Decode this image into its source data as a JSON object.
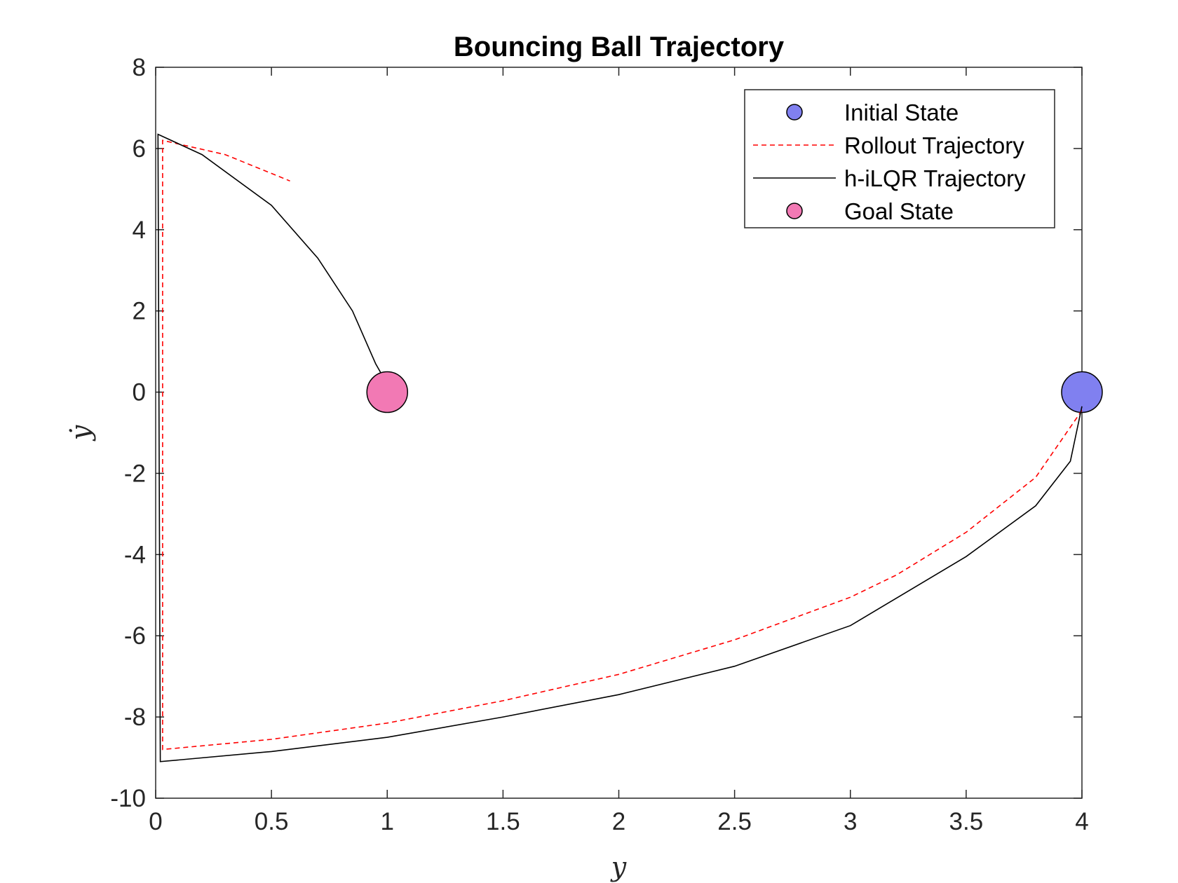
{
  "chart_data": {
    "type": "line",
    "title": "Bouncing Ball Trajectory",
    "xlabel": "y",
    "ylabel": "ẏ",
    "xlim": [
      0,
      4
    ],
    "ylim": [
      -10,
      8
    ],
    "xticks": [
      "0",
      "0.5",
      "1",
      "1.5",
      "2",
      "2.5",
      "3",
      "3.5",
      "4"
    ],
    "xtick_values": [
      0,
      0.5,
      1,
      1.5,
      2,
      2.5,
      3,
      3.5,
      4
    ],
    "yticks": [
      "-10",
      "-8",
      "-6",
      "-4",
      "-2",
      "0",
      "2",
      "4",
      "6",
      "8"
    ],
    "ytick_values": [
      -10,
      -8,
      -6,
      -4,
      -2,
      0,
      2,
      4,
      6,
      8
    ],
    "grid": false,
    "legend_position": "top-right",
    "series": [
      {
        "name": "Initial State",
        "kind": "marker",
        "color": "#8080f0",
        "points": [
          [
            4,
            0
          ]
        ]
      },
      {
        "name": "Rollout Trajectory",
        "kind": "dashed-line",
        "color": "#ff0000",
        "points": [
          [
            4,
            -0.45
          ],
          [
            3.8,
            -2.1
          ],
          [
            3.5,
            -3.45
          ],
          [
            3.2,
            -4.5
          ],
          [
            3.0,
            -5.05
          ],
          [
            2.5,
            -6.1
          ],
          [
            2.0,
            -6.95
          ],
          [
            1.5,
            -7.6
          ],
          [
            1.0,
            -8.15
          ],
          [
            0.5,
            -8.55
          ],
          [
            0.03,
            -8.8
          ],
          [
            0.03,
            6.2
          ],
          [
            0.3,
            5.85
          ],
          [
            0.58,
            5.2
          ]
        ]
      },
      {
        "name": "h-iLQR Trajectory",
        "kind": "solid-line",
        "color": "#000000",
        "points": [
          [
            4,
            -0.35
          ],
          [
            3.95,
            -1.7
          ],
          [
            3.8,
            -2.8
          ],
          [
            3.5,
            -4.05
          ],
          [
            3.0,
            -5.75
          ],
          [
            2.5,
            -6.75
          ],
          [
            2.0,
            -7.45
          ],
          [
            1.5,
            -8.0
          ],
          [
            1.0,
            -8.5
          ],
          [
            0.5,
            -8.85
          ],
          [
            0.02,
            -9.1
          ],
          [
            0.01,
            6.35
          ],
          [
            0.2,
            5.85
          ],
          [
            0.5,
            4.6
          ],
          [
            0.7,
            3.3
          ],
          [
            0.85,
            2.0
          ],
          [
            0.95,
            0.7
          ],
          [
            0.98,
            0.4
          ]
        ]
      },
      {
        "name": "Goal State",
        "kind": "marker",
        "color": "#f279b4",
        "points": [
          [
            1,
            0
          ]
        ]
      }
    ]
  }
}
